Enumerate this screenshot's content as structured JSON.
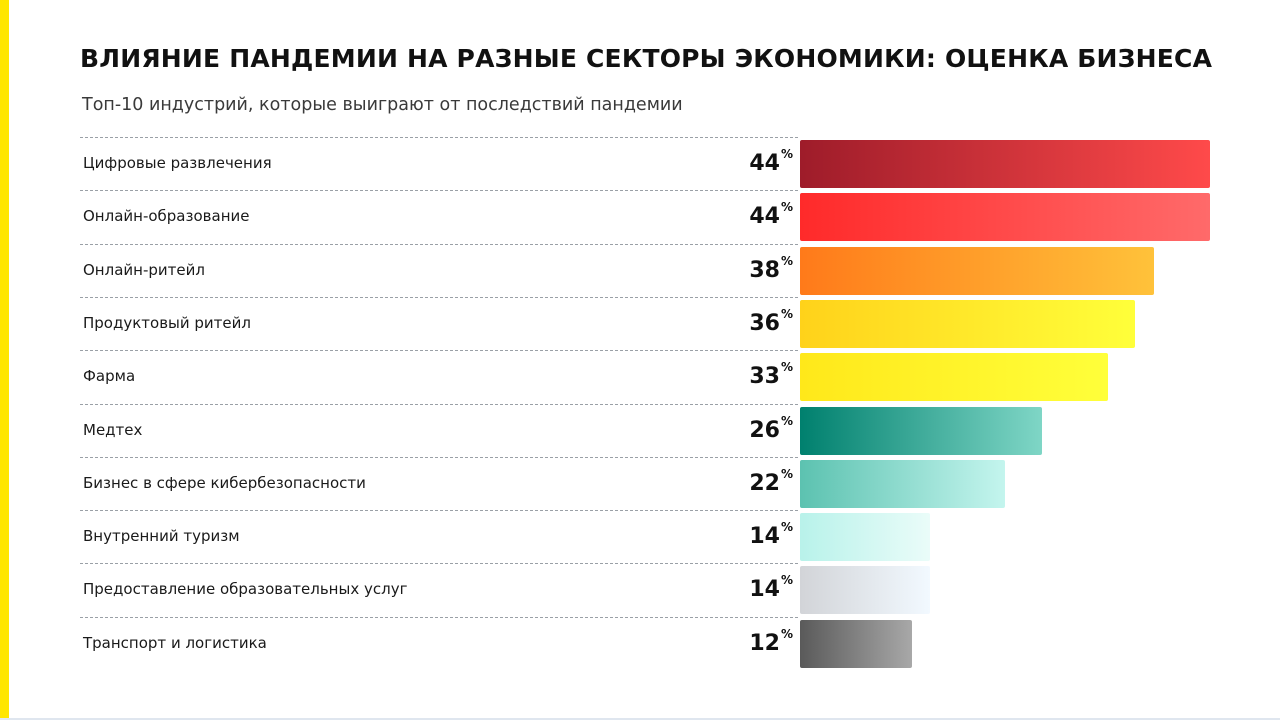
{
  "title": "ВЛИЯНИЕ ПАНДЕМИИ НА РАЗНЫЕ СЕКТОРЫ ЭКОНОМИКИ: ОЦЕНКА БИЗНЕСА",
  "subtitle": "Топ-10 индустрий, которые выиграют от последствий пандемии",
  "unit": "%",
  "chart_data": {
    "type": "bar",
    "orientation": "horizontal",
    "title": "ВЛИЯНИЕ ПАНДЕМИИ НА РАЗНЫЕ СЕКТОРЫ ЭКОНОМИКИ: ОЦЕНКА БИЗНЕСА",
    "subtitle": "Топ-10 индустрий, которые выиграют от последствий пандемии",
    "categories": [
      "Цифровые развлечения",
      "Онлайн-образование",
      "Онлайн-ритейл",
      "Продуктовый ритейл",
      "Фарма",
      "Медтех",
      "Бизнес в сфере кибербезопасности",
      "Внутренний туризм",
      "Предоставление образовательных услуг",
      "Транспорт и логистика"
    ],
    "values": [
      44,
      44,
      38,
      36,
      33,
      26,
      22,
      14,
      14,
      12
    ],
    "xlim": [
      0,
      44
    ],
    "grid": false,
    "bar_gradients": [
      [
        "#9e1c2a",
        "#ff4a4a"
      ],
      [
        "#ff2a2a",
        "#ff6a6a"
      ],
      [
        "#ff7a1a",
        "#ffc23a"
      ],
      [
        "#ffd21a",
        "#ffff3a"
      ],
      [
        "#ffe81a",
        "#ffff3a"
      ],
      [
        "#00806e",
        "#7fd6c6"
      ],
      [
        "#5cc2b0",
        "#c4f5ee"
      ],
      [
        "#b8f2ea",
        "#eafcf9"
      ],
      [
        "#d2d4d8",
        "#f2f9ff"
      ],
      [
        "#5a5a5a",
        "#a8a8a8"
      ]
    ]
  }
}
